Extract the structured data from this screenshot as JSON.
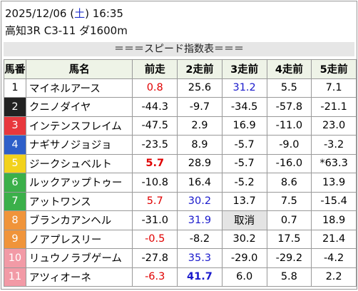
{
  "header": {
    "date": "2025/12/06",
    "weekday": "土",
    "weekday_color": "#2233cc",
    "time": "16:35",
    "race": "高知3R C3-11 ダ1600m"
  },
  "table": {
    "title": "＝＝＝スピード指数表＝＝＝",
    "columns": [
      "馬番",
      "馬名",
      "前走",
      "2走前",
      "3走前",
      "4走前",
      "5走前"
    ],
    "rows": [
      {
        "number": "1",
        "frame_color": "#ffffff",
        "number_color": "#000000",
        "name": "マイネルアース",
        "values": [
          {
            "text": "0.8",
            "color": "#e00000"
          },
          "25.6",
          {
            "text": "31.2",
            "color": "#1a1acc"
          },
          "5.5",
          "7.1"
        ]
      },
      {
        "number": "2",
        "frame_color": "#222222",
        "number_color": "#ffffff",
        "name": "クニノダイヤ",
        "values": [
          "-44.3",
          "-9.7",
          "-34.5",
          "-57.8",
          "-21.1"
        ]
      },
      {
        "number": "3",
        "frame_color": "#e8383d",
        "number_color": "#ffffff",
        "name": "インテンスフレイム",
        "values": [
          "-47.5",
          "2.9",
          "16.9",
          "-11.0",
          "23.0"
        ]
      },
      {
        "number": "4",
        "frame_color": "#2e5fc9",
        "number_color": "#ffffff",
        "name": "ナギサノジョジョ",
        "values": [
          "-23.5",
          "8.9",
          "-5.7",
          "-9.0",
          "-3.2"
        ]
      },
      {
        "number": "5",
        "frame_color": "#f2d21c",
        "number_color": "#ffffff",
        "name": "ジークシュベルト",
        "values": [
          {
            "text": "5.7",
            "color": "#e00000",
            "bold": true
          },
          "28.9",
          "-5.7",
          "-16.0",
          "*63.3"
        ]
      },
      {
        "number": "6",
        "frame_color": "#3bb04a",
        "number_color": "#ffffff",
        "name": "ルックアップトゥー",
        "values": [
          "-10.8",
          "16.4",
          "-5.2",
          "8.6",
          "13.9"
        ]
      },
      {
        "number": "7",
        "frame_color": "#3bb04a",
        "number_color": "#ffffff",
        "name": "アットワンス",
        "values": [
          {
            "text": "5.7",
            "color": "#e00000"
          },
          {
            "text": "30.2",
            "color": "#1a1acc"
          },
          "13.7",
          "7.5",
          "-15.4"
        ]
      },
      {
        "number": "8",
        "frame_color": "#f0943a",
        "number_color": "#ffffff",
        "name": "ブランカアンヘル",
        "values": [
          "-31.0",
          {
            "text": "31.9",
            "color": "#1a1acc"
          },
          {
            "text": "取消",
            "background": "#e4e4e4"
          },
          "0.7",
          "18.9"
        ]
      },
      {
        "number": "9",
        "frame_color": "#f0943a",
        "number_color": "#ffffff",
        "name": "ノアプレスリー",
        "values": [
          {
            "text": "-0.5",
            "color": "#e00000"
          },
          "-8.2",
          "30.2",
          "17.5",
          "21.4"
        ]
      },
      {
        "number": "10",
        "frame_color": "#f29aa6",
        "number_color": "#ffffff",
        "name": "リュウノラブゲーム",
        "values": [
          "-27.8",
          {
            "text": "35.3",
            "color": "#1a1acc"
          },
          "-29.0",
          "-29.2",
          "-4.2"
        ]
      },
      {
        "number": "11",
        "frame_color": "#f29aa6",
        "number_color": "#ffffff",
        "name": "アツィオーネ",
        "values": [
          {
            "text": "-6.3",
            "color": "#e00000"
          },
          {
            "text": "41.7",
            "color": "#1a1acc",
            "bold": true
          },
          "6.0",
          "5.8",
          "2.2"
        ]
      }
    ]
  }
}
